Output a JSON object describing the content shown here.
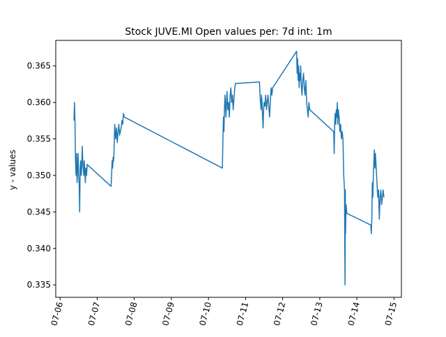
{
  "chart_data": {
    "type": "line",
    "title": "Stock JUVE.MI Open values per: 7d int: 1m",
    "xlabel": "",
    "ylabel": "y - values",
    "x_ticks": [
      "07-06",
      "07-07",
      "07-08",
      "07-09",
      "07-10",
      "07-11",
      "07-12",
      "07-13",
      "07-14",
      "07-15"
    ],
    "y_ticks": [
      "0.335",
      "0.340",
      "0.345",
      "0.350",
      "0.355",
      "0.360",
      "0.365"
    ],
    "xlim": [
      "07-05T21:12",
      "07-15T04:48"
    ],
    "ylim": [
      0.3333,
      0.3685
    ],
    "grid": false,
    "series": [
      {
        "color": "#1f77b4",
        "x": [
          "07-06T09:00",
          "07-06T09:20",
          "07-06T09:40",
          "07-06T10:00",
          "07-06T10:20",
          "07-06T10:40",
          "07-06T11:00",
          "07-06T11:20",
          "07-06T11:40",
          "07-06T12:00",
          "07-06T12:20",
          "07-06T12:40",
          "07-06T13:00",
          "07-06T13:20",
          "07-06T13:40",
          "07-06T14:00",
          "07-06T14:20",
          "07-06T14:40",
          "07-06T15:00",
          "07-06T15:20",
          "07-06T15:40",
          "07-06T16:00",
          "07-06T16:20",
          "07-06T16:40",
          "07-06T17:10",
          "07-06T17:30",
          "07-07T09:00",
          "07-07T09:20",
          "07-07T09:40",
          "07-07T10:00",
          "07-07T10:20",
          "07-07T10:40",
          "07-07T11:00",
          "07-07T11:20",
          "07-07T11:40",
          "07-07T12:00",
          "07-07T12:30",
          "07-07T13:00",
          "07-07T13:30",
          "07-07T14:00",
          "07-07T14:30",
          "07-07T15:00",
          "07-07T15:30",
          "07-07T16:00",
          "07-07T16:30",
          "07-07T17:00",
          "07-07T17:30",
          "07-10T09:00",
          "07-10T09:20",
          "07-10T09:40",
          "07-10T10:00",
          "07-10T10:20",
          "07-10T10:40",
          "07-10T11:00",
          "07-10T11:20",
          "07-10T11:40",
          "07-10T12:00",
          "07-10T12:30",
          "07-10T13:00",
          "07-10T13:30",
          "07-10T14:00",
          "07-10T14:30",
          "07-10T15:00",
          "07-10T15:30",
          "07-10T16:00",
          "07-10T16:30",
          "07-10T17:00",
          "07-10T17:30",
          "07-11T09:00",
          "07-11T09:20",
          "07-11T09:40",
          "07-11T10:00",
          "07-11T10:20",
          "07-11T10:40",
          "07-11T11:00",
          "07-11T11:20",
          "07-11T11:40",
          "07-11T12:00",
          "07-11T12:30",
          "07-11T13:00",
          "07-11T13:30",
          "07-11T14:00",
          "07-11T14:30",
          "07-11T15:00",
          "07-11T15:30",
          "07-11T16:00",
          "07-11T16:30",
          "07-11T17:00",
          "07-11T17:30",
          "07-12T09:00",
          "07-12T09:20",
          "07-12T09:40",
          "07-12T10:00",
          "07-12T10:20",
          "07-12T10:40",
          "07-12T11:00",
          "07-12T11:20",
          "07-12T11:40",
          "07-12T12:00",
          "07-12T12:30",
          "07-12T13:00",
          "07-12T13:30",
          "07-12T14:00",
          "07-12T14:30",
          "07-12T15:00",
          "07-12T15:30",
          "07-12T16:00",
          "07-12T16:30",
          "07-12T17:00",
          "07-12T17:30",
          "07-13T09:00",
          "07-13T09:20",
          "07-13T09:40",
          "07-13T10:00",
          "07-13T10:20",
          "07-13T10:40",
          "07-13T11:00",
          "07-13T11:20",
          "07-13T11:40",
          "07-13T12:00",
          "07-13T12:30",
          "07-13T13:00",
          "07-13T13:30",
          "07-13T14:00",
          "07-13T14:30",
          "07-13T15:00",
          "07-13T15:30",
          "07-13T16:00",
          "07-13T16:10",
          "07-13T16:20",
          "07-13T16:30",
          "07-13T16:40",
          "07-13T17:00",
          "07-13T17:30",
          "07-14T09:00",
          "07-14T09:20",
          "07-14T09:40",
          "07-14T10:00",
          "07-14T10:20",
          "07-14T10:40",
          "07-14T11:00",
          "07-14T11:20",
          "07-14T11:40",
          "07-14T12:00",
          "07-14T12:30",
          "07-14T13:00",
          "07-14T13:30",
          "07-14T14:00",
          "07-14T14:30",
          "07-14T15:00",
          "07-14T15:30",
          "07-14T16:00",
          "07-14T16:30",
          "07-14T17:00",
          "07-14T17:30"
        ],
        "y": [
          0.3575,
          0.36,
          0.357,
          0.352,
          0.35,
          0.353,
          0.349,
          0.351,
          0.353,
          0.35,
          0.349,
          0.345,
          0.351,
          0.352,
          0.35,
          0.351,
          0.354,
          0.352,
          0.351,
          0.35,
          0.352,
          0.3505,
          0.349,
          0.351,
          0.35,
          0.3515,
          0.3485,
          0.35,
          0.352,
          0.351,
          0.3525,
          0.352,
          0.354,
          0.357,
          0.356,
          0.355,
          0.3565,
          0.3545,
          0.356,
          0.357,
          0.3555,
          0.356,
          0.3565,
          0.3575,
          0.357,
          0.3585,
          0.358,
          0.351,
          0.355,
          0.358,
          0.356,
          0.359,
          0.361,
          0.3595,
          0.358,
          0.36,
          0.3615,
          0.359,
          0.36,
          0.358,
          0.361,
          0.362,
          0.36,
          0.361,
          0.359,
          0.3605,
          0.362,
          0.3626,
          0.3628,
          0.361,
          0.36,
          0.359,
          0.361,
          0.36,
          0.358,
          0.3565,
          0.359,
          0.36,
          0.3595,
          0.361,
          0.359,
          0.36,
          0.361,
          0.3595,
          0.358,
          0.36,
          0.362,
          0.361,
          0.362,
          0.367,
          0.364,
          0.366,
          0.363,
          0.365,
          0.362,
          0.364,
          0.363,
          0.365,
          0.3625,
          0.361,
          0.363,
          0.364,
          0.362,
          0.361,
          0.363,
          0.36,
          0.359,
          0.358,
          0.36,
          0.359,
          0.356,
          0.353,
          0.3575,
          0.3585,
          0.357,
          0.359,
          0.358,
          0.36,
          0.357,
          0.359,
          0.358,
          0.356,
          0.357,
          0.355,
          0.356,
          0.355,
          0.35,
          0.348,
          0.34,
          0.335,
          0.348,
          0.342,
          0.346,
          0.3448,
          0.3432,
          0.342,
          0.344,
          0.349,
          0.347,
          0.35,
          0.352,
          0.3535,
          0.351,
          0.353,
          0.351,
          0.349,
          0.347,
          0.348,
          0.344,
          0.347,
          0.348,
          0.346,
          0.347,
          0.348,
          0.347
        ]
      }
    ]
  }
}
